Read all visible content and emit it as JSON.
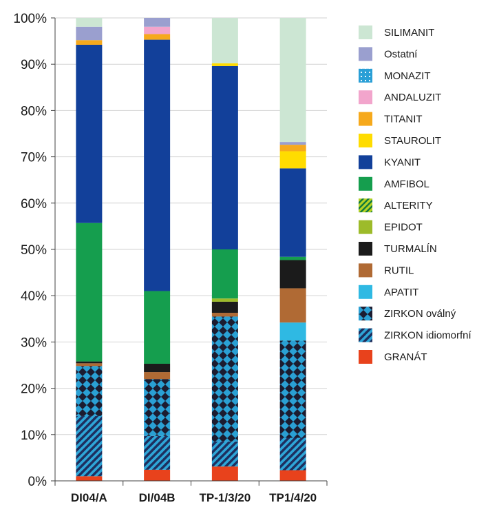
{
  "chart_data": {
    "type": "bar",
    "stacked": true,
    "categories": [
      "DI04/A",
      "DI/04B",
      "TP-1/3/20",
      "TP1/4/20"
    ],
    "ylim": [
      0,
      100
    ],
    "yticks": [
      0,
      10,
      20,
      30,
      40,
      50,
      60,
      70,
      80,
      90,
      100
    ],
    "ytick_suffix": "%",
    "legend_position": "right",
    "series": [
      {
        "name": "GRANÁT",
        "key": "granat",
        "color": "#e8421c",
        "pattern": "solid",
        "values": [
          1,
          2.4,
          3.1,
          2.3
        ]
      },
      {
        "name": "ZIRKON idiomorfní",
        "key": "zirkon_idio",
        "color": "#29a3d6",
        "pattern": "stripe",
        "values": [
          13,
          7.3,
          5.4,
          7
        ]
      },
      {
        "name": "ZIRKON oválný",
        "key": "zirkon_oval",
        "color": "#29a3d6",
        "pattern": "checker",
        "values": [
          10.8,
          12.3,
          27,
          21
        ]
      },
      {
        "name": "APATIT",
        "key": "apatit",
        "color": "#2fb9e3",
        "pattern": "solid",
        "values": [
          0,
          0,
          0,
          3.9
        ]
      },
      {
        "name": "RUTIL",
        "key": "rutil",
        "color": "#b06a34",
        "pattern": "solid",
        "values": [
          0.6,
          1.5,
          0.8,
          7.4
        ]
      },
      {
        "name": "TURMALÍN",
        "key": "turmalin",
        "color": "#1b1b1b",
        "pattern": "solid",
        "values": [
          0.4,
          1.8,
          2.4,
          6.1
        ]
      },
      {
        "name": "EPIDOT",
        "key": "epidot",
        "color": "#9dbb2a",
        "pattern": "solid",
        "values": [
          0,
          0,
          0.7,
          0
        ]
      },
      {
        "name": "ALTERITY",
        "key": "alterity",
        "color": "#b6d325",
        "pattern": "diag",
        "values": [
          0,
          0,
          0,
          0
        ]
      },
      {
        "name": "AMFIBOL",
        "key": "amfibol",
        "color": "#159e4e",
        "pattern": "solid",
        "values": [
          29.9,
          15.7,
          10.6,
          0.7
        ]
      },
      {
        "name": "KYANIT",
        "key": "kyanit",
        "color": "#12409a",
        "pattern": "solid",
        "values": [
          38.5,
          54.3,
          39.6,
          19.1
        ]
      },
      {
        "name": "STAUROLIT",
        "key": "staurolit",
        "color": "#ffdc00",
        "pattern": "solid",
        "values": [
          0,
          0,
          0.6,
          3.7
        ]
      },
      {
        "name": "TITANIT",
        "key": "titanit",
        "color": "#f6a91c",
        "pattern": "solid",
        "values": [
          1,
          1.2,
          0,
          1.4
        ]
      },
      {
        "name": "ANDALUZIT",
        "key": "andaluzit",
        "color": "#f2a5cc",
        "pattern": "solid",
        "values": [
          0,
          1.6,
          0,
          0
        ]
      },
      {
        "name": "MONAZIT",
        "key": "monazit",
        "color": "#2a9fd6",
        "pattern": "dots",
        "values": [
          0,
          0,
          0,
          0
        ]
      },
      {
        "name": "Ostatní",
        "key": "ostatni",
        "color": "#9a9fcf",
        "pattern": "solid",
        "values": [
          2.9,
          1.9,
          0,
          0.6
        ]
      },
      {
        "name": "SILIMANIT",
        "key": "silimanit",
        "color": "#cce6d3",
        "pattern": "solid",
        "values": [
          1.9,
          0,
          9.8,
          26.8
        ]
      }
    ],
    "legend_order": [
      "silimanit",
      "ostatni",
      "monazit",
      "andaluzit",
      "titanit",
      "staurolit",
      "kyanit",
      "amfibol",
      "alterity",
      "epidot",
      "turmalin",
      "rutil",
      "apatit",
      "zirkon_oval",
      "zirkon_idio",
      "granat"
    ]
  }
}
